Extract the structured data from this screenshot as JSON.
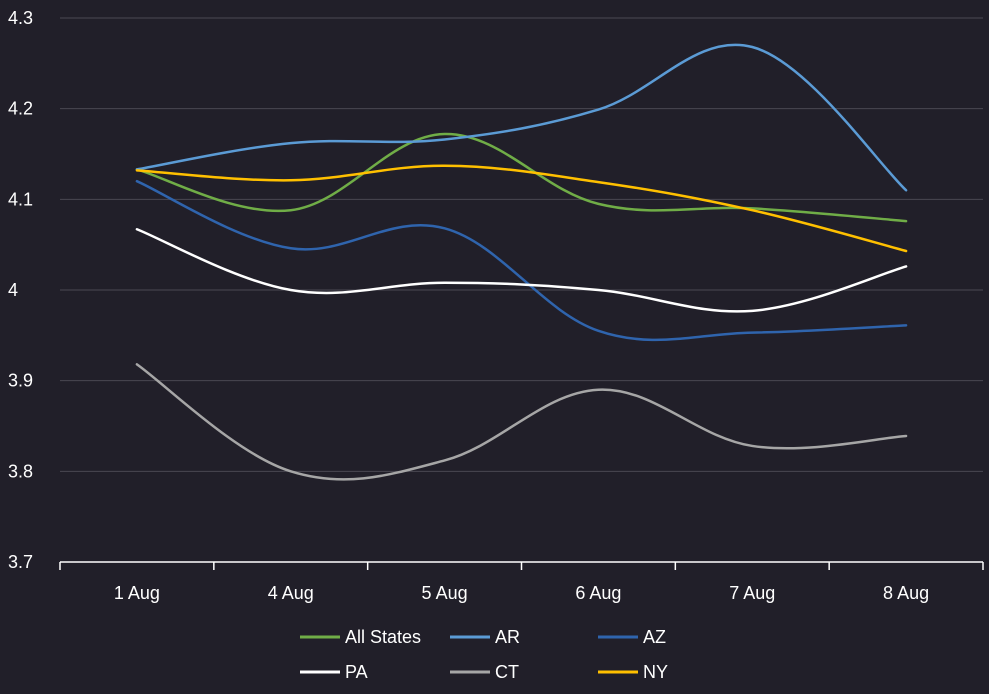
{
  "chart_data": {
    "type": "line",
    "title": "",
    "xlabel": "",
    "ylabel": "",
    "categories": [
      "1 Aug",
      "4 Aug",
      "5 Aug",
      "6 Aug",
      "7 Aug",
      "8 Aug"
    ],
    "ylim": [
      3.7,
      4.3
    ],
    "yticks": [
      "3.7",
      "3.8",
      "3.9",
      "4",
      "4.1",
      "4.2",
      "4.3"
    ],
    "grid": true,
    "legend_position": "bottom",
    "smooth": true,
    "series": [
      {
        "name": "All States",
        "color": "#70ad47",
        "values": [
          4.133,
          4.088,
          4.172,
          4.095,
          4.09,
          4.076
        ]
      },
      {
        "name": "AR",
        "color": "#5b9bd5",
        "values": [
          4.133,
          4.162,
          4.166,
          4.199,
          4.268,
          4.11
        ]
      },
      {
        "name": "AZ",
        "color": "#2f64ad",
        "values": [
          4.12,
          4.046,
          4.068,
          3.955,
          3.953,
          3.961
        ]
      },
      {
        "name": "PA",
        "color": "#ffffff",
        "values": [
          4.067,
          4.0,
          4.008,
          4.0,
          3.977,
          4.026
        ]
      },
      {
        "name": "CT",
        "color": "#a6a6a6",
        "values": [
          3.918,
          3.8,
          3.812,
          3.89,
          3.828,
          3.839
        ]
      },
      {
        "name": "NY",
        "color": "#ffc000",
        "values": [
          4.132,
          4.121,
          4.137,
          4.119,
          4.088,
          4.043
        ]
      }
    ]
  }
}
